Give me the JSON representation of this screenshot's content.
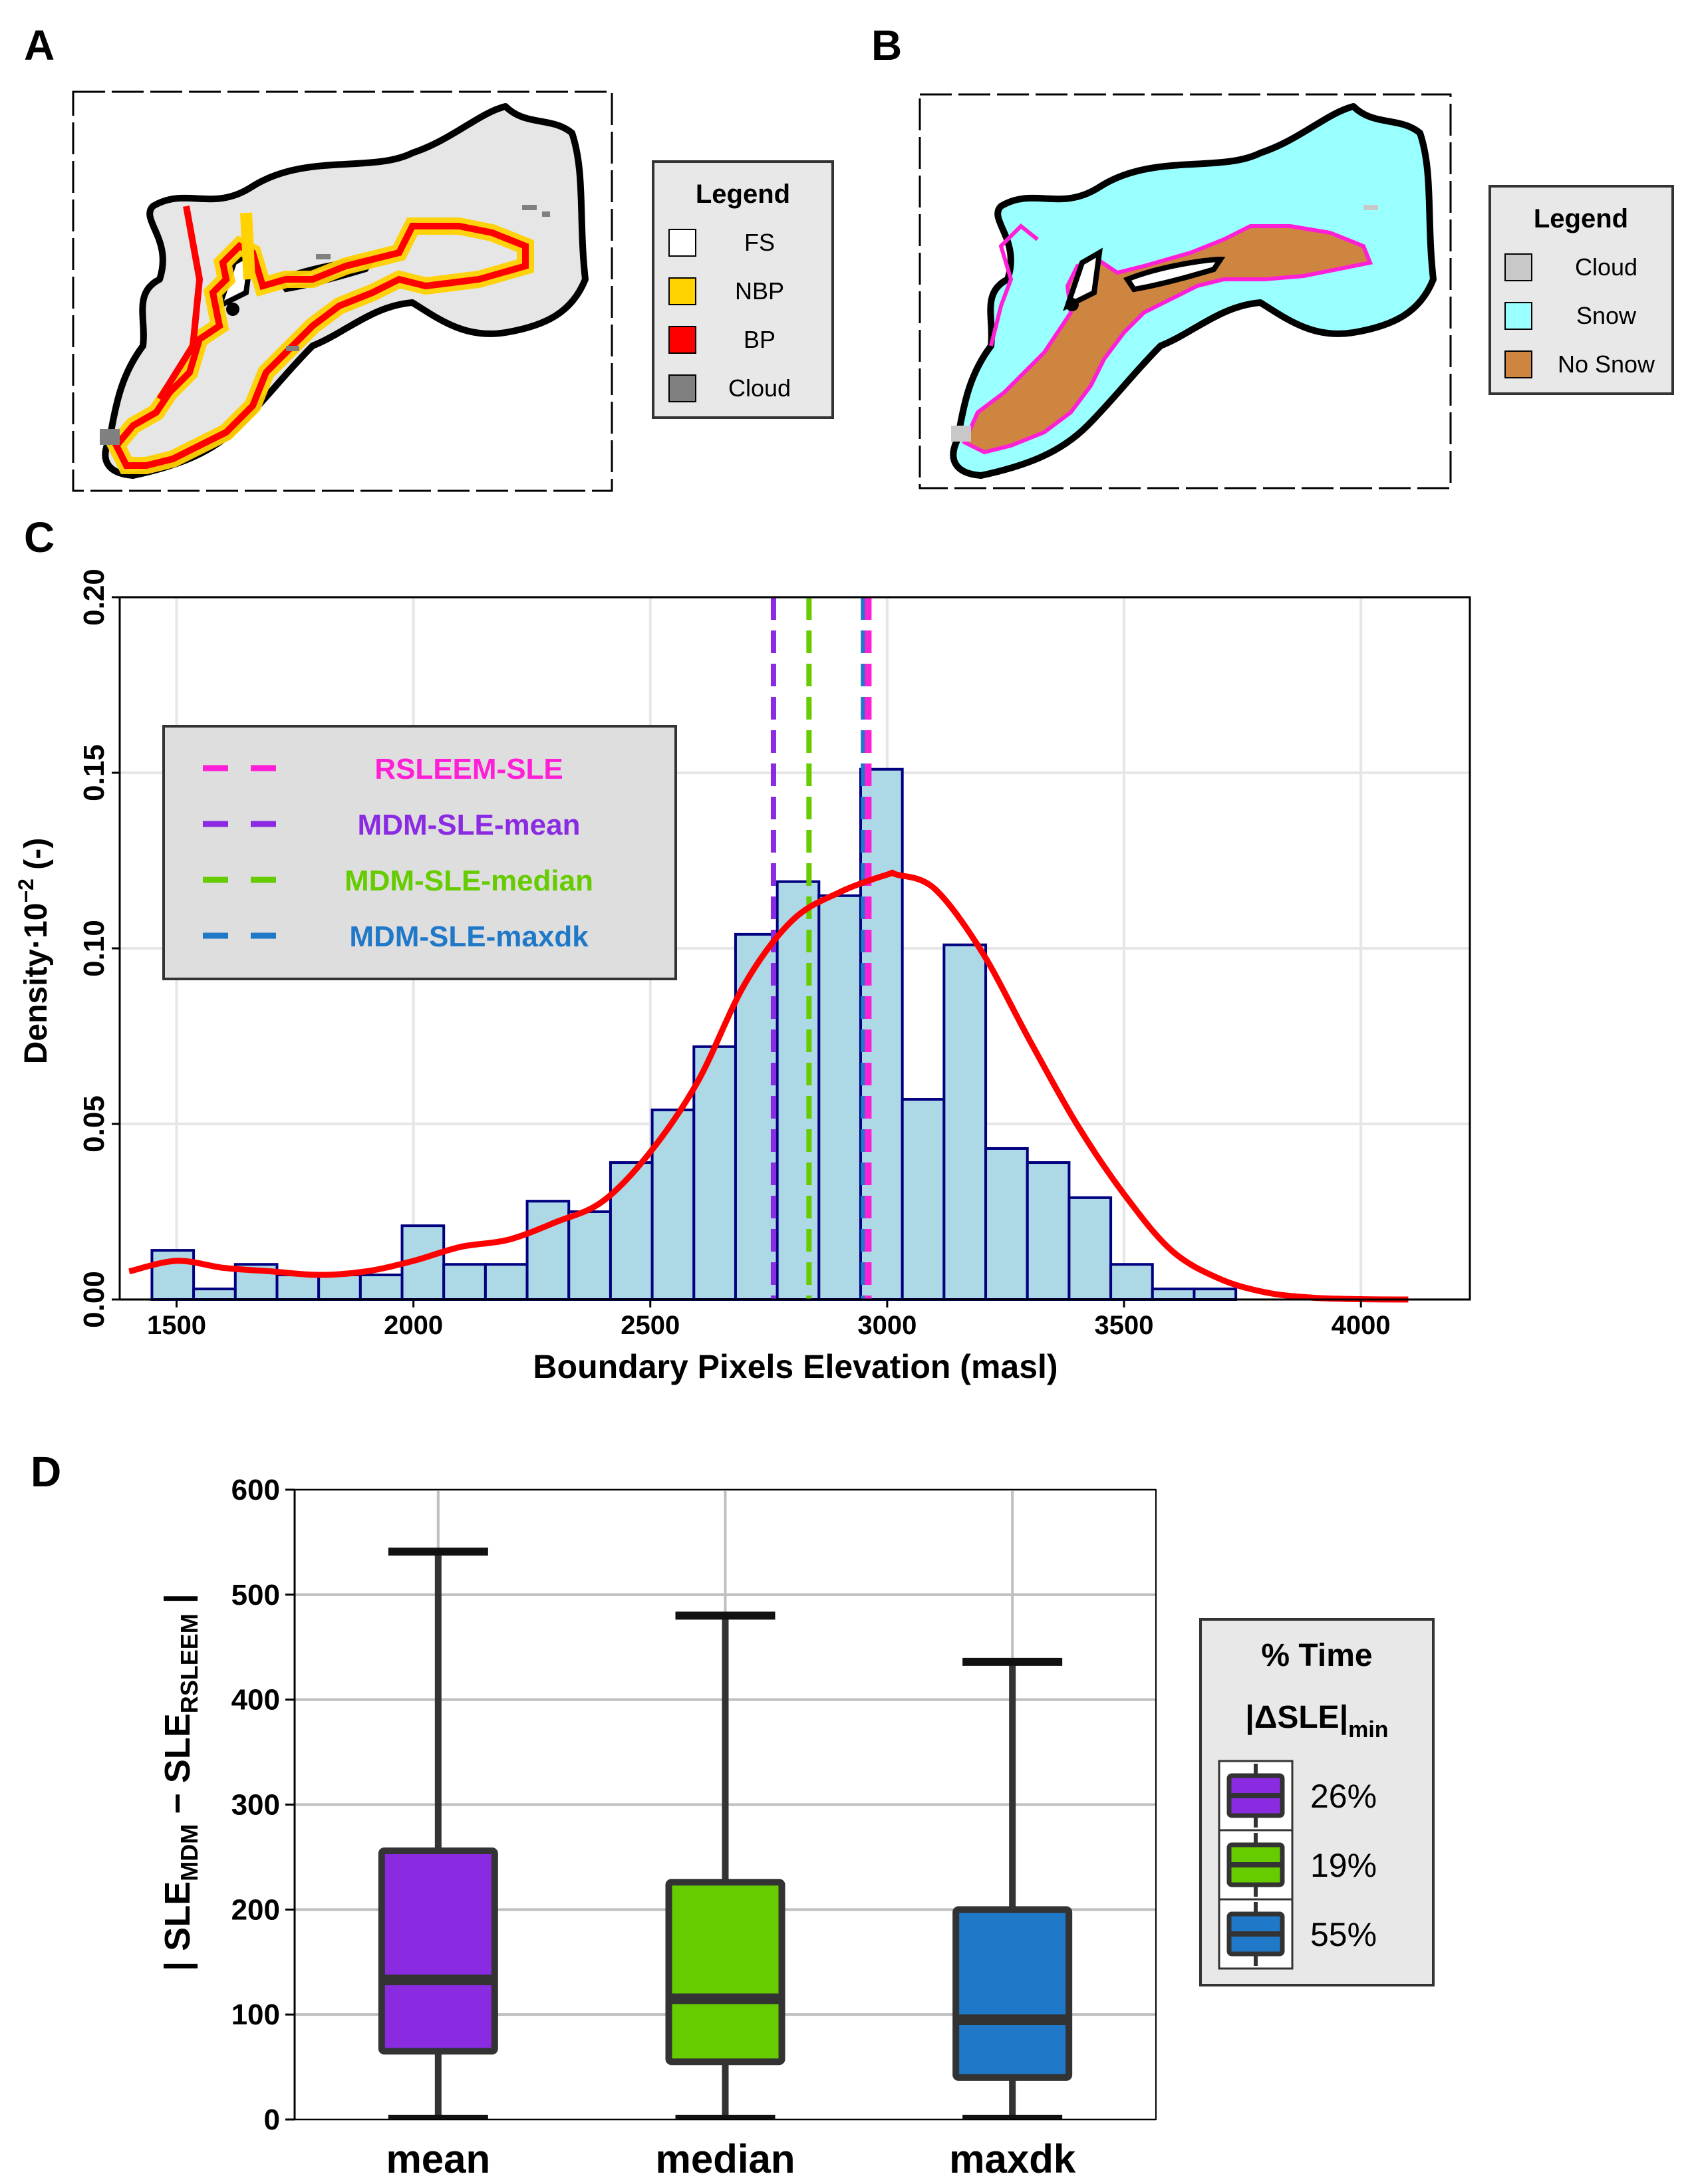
{
  "panel_labels": {
    "a": "A",
    "b": "B",
    "c": "C",
    "d": "D"
  },
  "legend_a": {
    "title": "Legend",
    "items": [
      {
        "label": "FS",
        "color": "#ffffff"
      },
      {
        "label": "NBP",
        "color": "#ffd200"
      },
      {
        "label": "BP",
        "color": "#ff0000"
      },
      {
        "label": "Cloud",
        "color": "#808080"
      }
    ]
  },
  "legend_b": {
    "title": "Legend",
    "items": [
      {
        "label": "Cloud",
        "color": "#c8c8c8"
      },
      {
        "label": "Snow",
        "color": "#99ffff"
      },
      {
        "label": "No Snow",
        "color": "#cd853f"
      }
    ]
  },
  "legend_c": [
    {
      "label": "RSLEEM-SLE",
      "color": "#ff1fd6"
    },
    {
      "label": "MDM-SLE-mean",
      "color": "#8a2be2"
    },
    {
      "label": "MDM-SLE-median",
      "color": "#66cc00"
    },
    {
      "label": "MDM-SLE-maxdk",
      "color": "#1f78c8"
    }
  ],
  "legend_d": {
    "title": "% Time",
    "subtitle_main": "|ΔSLE|",
    "subtitle_sub": "min",
    "items": [
      {
        "label": "26%",
        "color": "#8a2be2"
      },
      {
        "label": "19%",
        "color": "#66cc00"
      },
      {
        "label": "55%",
        "color": "#1f78c8"
      }
    ]
  },
  "axis_c": {
    "xlabel": "Boundary Pixels Elevation (masl)",
    "ylabel_main": "Density·10",
    "ylabel_exp": "−2",
    "ylabel_unit": " (-)"
  },
  "axis_d": {
    "ylabel_a": "| SLE",
    "ylabel_a_sub": "MDM",
    "ylabel_b": " − SLE",
    "ylabel_b_sub": "RSLEEM",
    "ylabel_c": " |"
  },
  "chart_data": [
    {
      "type": "histogram",
      "panel": "C",
      "xlabel": "Boundary Pixels Elevation (masl)",
      "ylabel": "Density·10^-2 (-)",
      "xlim": [
        1380,
        4230
      ],
      "ylim": [
        0,
        0.2
      ],
      "xticks": [
        1500,
        2000,
        2500,
        3000,
        3500,
        4000
      ],
      "yticks": [
        "0.00",
        "0.05",
        "0.10",
        "0.15",
        "0.20"
      ],
      "bin_width": 88,
      "bin_starts": [
        1448,
        1536,
        1624,
        1712,
        1800,
        1888,
        1976,
        2064,
        2152,
        2240,
        2328,
        2416,
        2504,
        2592,
        2680,
        2768,
        2856,
        2944,
        3032,
        3120,
        3208,
        3296,
        3384,
        3472,
        3560,
        3648,
        3736
      ],
      "densities": [
        0.014,
        0.003,
        0.01,
        0.007,
        0.007,
        0.007,
        0.021,
        0.01,
        0.01,
        0.028,
        0.025,
        0.039,
        0.054,
        0.072,
        0.104,
        0.119,
        0.115,
        0.151,
        0.057,
        0.101,
        0.043,
        0.039,
        0.029,
        0.01,
        0.003,
        0.003,
        0.0
      ],
      "kde": {
        "name": "density",
        "color": "#ff0000",
        "x": [
          1400,
          1500,
          1600,
          1700,
          1800,
          1900,
          2000,
          2100,
          2200,
          2300,
          2400,
          2500,
          2600,
          2700,
          2800,
          2900,
          3000,
          3020,
          3100,
          3200,
          3300,
          3400,
          3500,
          3600,
          3700,
          3800,
          3900,
          4000,
          4100
        ],
        "y": [
          0.008,
          0.011,
          0.009,
          0.008,
          0.007,
          0.008,
          0.011,
          0.015,
          0.017,
          0.022,
          0.028,
          0.042,
          0.062,
          0.09,
          0.108,
          0.116,
          0.121,
          0.121,
          0.117,
          0.099,
          0.074,
          0.05,
          0.03,
          0.014,
          0.006,
          0.002,
          0.0005,
          0.0001,
          0.0
        ]
      },
      "vlines": [
        {
          "name": "RSLEEM-SLE",
          "x": 2960,
          "color": "#ff1fd6"
        },
        {
          "name": "MDM-SLE-mean",
          "x": 2760,
          "color": "#8a2be2"
        },
        {
          "name": "MDM-SLE-median",
          "x": 2835,
          "color": "#66cc00"
        },
        {
          "name": "MDM-SLE-maxdk",
          "x": 2950,
          "color": "#1f78c8"
        }
      ],
      "grid": true,
      "legend_position": "top-left"
    },
    {
      "type": "box",
      "panel": "D",
      "categories": [
        "mean",
        "median",
        "maxdk"
      ],
      "ylim": [
        0,
        600
      ],
      "yticks": [
        0,
        100,
        200,
        300,
        400,
        500,
        600
      ],
      "boxes": [
        {
          "name": "mean",
          "min": 2,
          "q1": 65,
          "median": 133,
          "q3": 256,
          "max": 541,
          "color": "#8a2be2"
        },
        {
          "name": "median",
          "min": 2,
          "q1": 55,
          "median": 115,
          "q3": 226,
          "max": 480,
          "color": "#66cc00"
        },
        {
          "name": "maxdk",
          "min": 2,
          "q1": 40,
          "median": 95,
          "q3": 200,
          "max": 436,
          "color": "#1f78c8"
        }
      ],
      "grid": true,
      "legend_position": "right"
    }
  ]
}
